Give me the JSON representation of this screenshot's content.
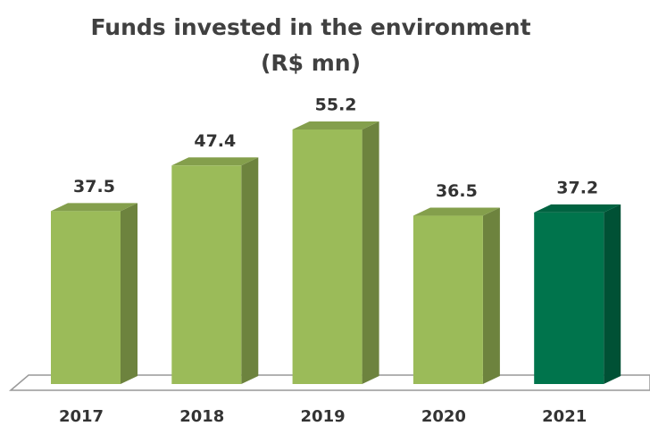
{
  "chart_data": {
    "type": "bar3d",
    "title": "Funds invested in the environment",
    "subtitle": "(R$ mn)",
    "categories": [
      "2017",
      "2018",
      "2019",
      "2020",
      "2021"
    ],
    "values": [
      37.5,
      47.4,
      55.2,
      36.5,
      37.2
    ],
    "colors": [
      "#9bbb59",
      "#9bbb59",
      "#9bbb59",
      "#9bbb59",
      "#00744c"
    ]
  }
}
